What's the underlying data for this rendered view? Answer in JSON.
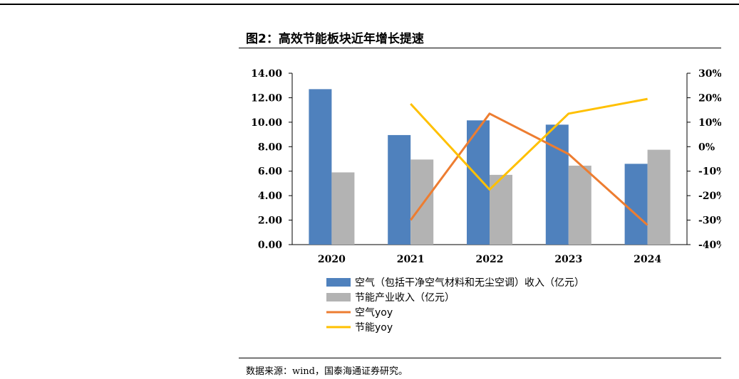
{
  "header": {
    "title": "图2：高效节能板块近年增长提速"
  },
  "footer": {
    "source": "数据来源：wind，国泰海通证券研究。"
  },
  "chart_data": {
    "type": "bar",
    "categories": [
      "2020",
      "2021",
      "2022",
      "2023",
      "2024"
    ],
    "series": [
      {
        "name": "空气（包括干净空气材料和无尘空调）收入（亿元）",
        "kind": "bar",
        "axis": "left",
        "color": "#4f81bd",
        "values": [
          12.7,
          8.95,
          10.15,
          9.8,
          6.6
        ]
      },
      {
        "name": "节能产业收入（亿元）",
        "kind": "bar",
        "axis": "left",
        "color": "#b3b3b3",
        "values": [
          5.9,
          6.95,
          5.7,
          6.45,
          7.75
        ]
      },
      {
        "name": "空气yoy",
        "kind": "line",
        "axis": "right",
        "color": "#ed7d31",
        "values": [
          null,
          -30,
          13.5,
          -3,
          -32
        ]
      },
      {
        "name": "节能yoy",
        "kind": "line",
        "axis": "right",
        "color": "#ffc000",
        "values": [
          null,
          17.5,
          -17.5,
          13.5,
          19.5
        ]
      }
    ],
    "left_axis": {
      "min": 0,
      "max": 14,
      "step": 2,
      "tick_labels": [
        "0.00",
        "2.00",
        "4.00",
        "6.00",
        "8.00",
        "10.00",
        "12.00",
        "14.00"
      ]
    },
    "right_axis": {
      "min": -40,
      "max": 30,
      "step": 10,
      "tick_labels": [
        "-40%",
        "-30%",
        "-20%",
        "-10%",
        "0%",
        "10%",
        "20%",
        "30%"
      ]
    },
    "legend_position": "bottom"
  }
}
